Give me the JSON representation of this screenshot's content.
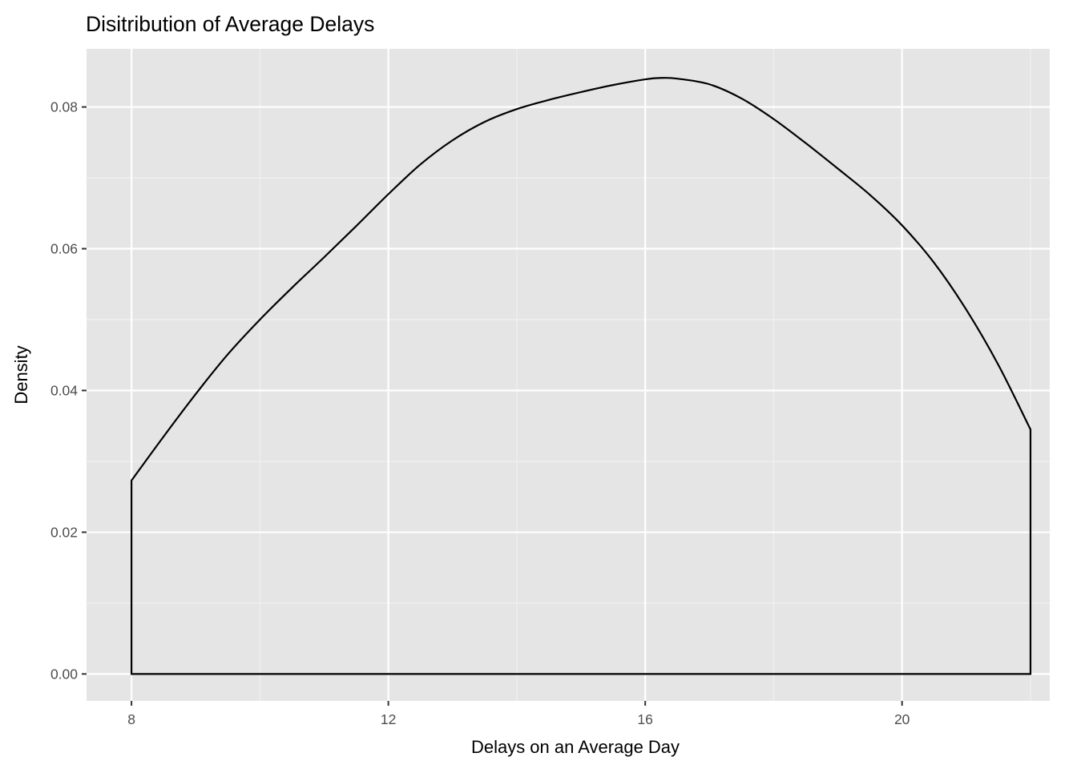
{
  "chart_data": {
    "type": "area",
    "title": "Disitribution of Average Delays",
    "xlabel": "Delays on an Average Day",
    "ylabel": "Density",
    "xlim": [
      7.3,
      22.3
    ],
    "ylim": [
      -0.0038,
      0.0882
    ],
    "x_ticks": [
      8,
      12,
      16,
      20
    ],
    "x_tick_labels": [
      "8",
      "12",
      "16",
      "20"
    ],
    "x_minor_ticks": [
      10,
      14,
      18,
      22
    ],
    "y_ticks": [
      0.0,
      0.02,
      0.04,
      0.06,
      0.08
    ],
    "y_tick_labels": [
      "0.00",
      "0.02",
      "0.04",
      "0.06",
      "0.08"
    ],
    "y_minor_ticks": [
      0.01,
      0.03,
      0.05,
      0.07
    ],
    "grid": true,
    "legend": "none",
    "colors": {
      "panel": "#e5e5e5",
      "grid_major": "#ffffff",
      "grid_minor": "#f2f2f2",
      "line": "#000000",
      "tick_label": "#4d4d4d",
      "tick_mark": "#333333"
    },
    "series": [
      {
        "x": [
          8.0,
          8.5,
          9.0,
          9.5,
          10.0,
          10.5,
          11.0,
          11.5,
          12.0,
          12.5,
          13.0,
          13.5,
          14.0,
          14.5,
          15.0,
          15.5,
          16.0,
          16.25,
          16.5,
          17.0,
          17.5,
          18.0,
          18.5,
          19.0,
          19.5,
          20.0,
          20.5,
          21.0,
          21.5,
          22.0
        ],
        "y": [
          0.0273,
          0.0335,
          0.0395,
          0.0451,
          0.05,
          0.0545,
          0.0588,
          0.0632,
          0.0677,
          0.0719,
          0.0753,
          0.0779,
          0.0797,
          0.081,
          0.0821,
          0.0831,
          0.0839,
          0.0841,
          0.084,
          0.0832,
          0.0812,
          0.0783,
          0.0749,
          0.0713,
          0.0676,
          0.0633,
          0.058,
          0.0514,
          0.0436,
          0.0345
        ]
      }
    ],
    "baseline": 0.0
  }
}
